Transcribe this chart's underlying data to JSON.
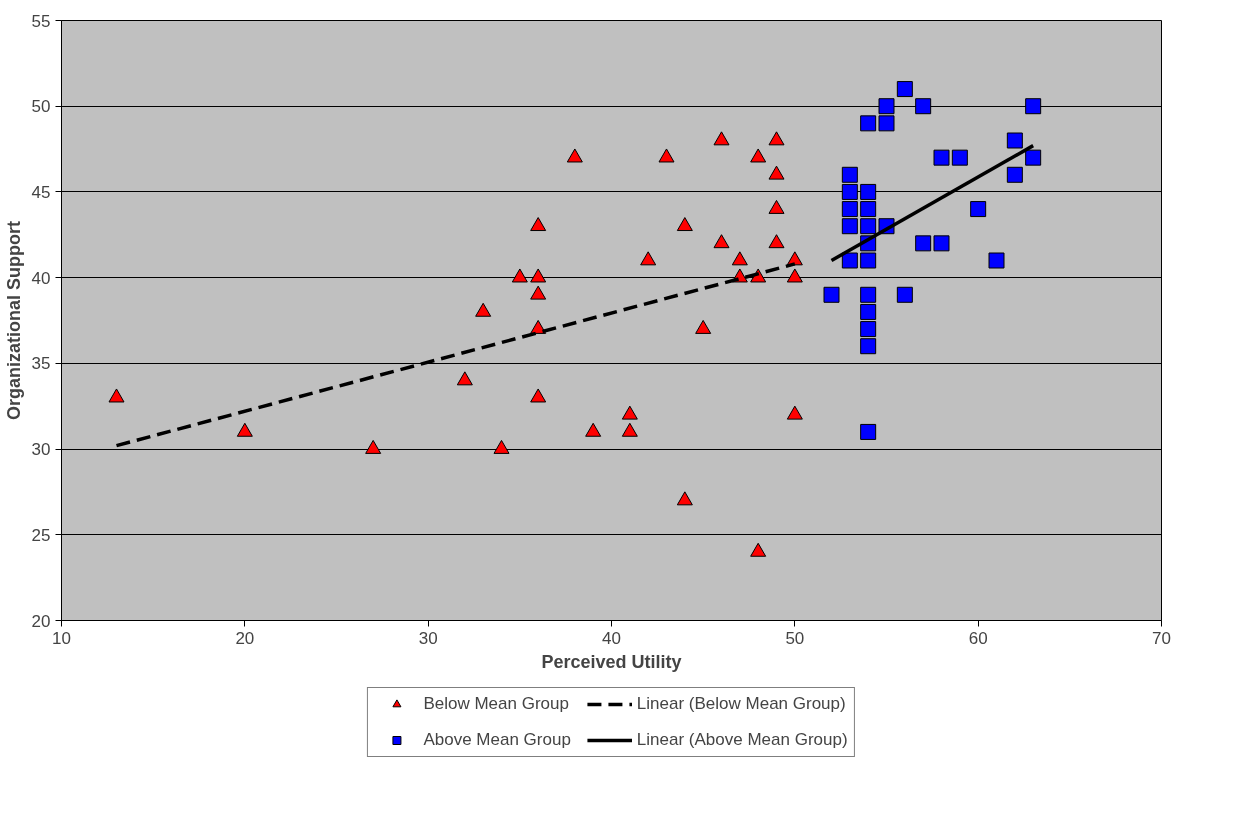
{
  "chart_data": {
    "type": "scatter",
    "xlabel": "Perceived Utility",
    "ylabel": "Organizational Support",
    "xlim": [
      10,
      70
    ],
    "ylim": [
      20,
      55
    ],
    "xticks": [
      10,
      20,
      30,
      40,
      50,
      60,
      70
    ],
    "yticks": [
      20,
      25,
      30,
      35,
      40,
      45,
      50,
      55
    ],
    "grid": "y",
    "legend": "bottom",
    "series": [
      {
        "name": "Below Mean Group",
        "type": "scatter",
        "marker": "triangle",
        "color": "#ff0000",
        "x": [
          13,
          20,
          27,
          32,
          33,
          34,
          35,
          36,
          36,
          36,
          36,
          36,
          38,
          39,
          41,
          41,
          42,
          43,
          44,
          44,
          45,
          46,
          46,
          47,
          47,
          48,
          48,
          48,
          49,
          49,
          49,
          49,
          50,
          50,
          50
        ],
        "values": [
          33,
          31,
          30,
          34,
          38,
          30,
          40,
          40,
          39,
          37,
          43,
          33,
          47,
          31,
          32,
          31,
          41,
          47,
          43,
          27,
          37,
          48,
          42,
          41,
          40,
          47,
          40,
          24,
          48,
          46,
          44,
          42,
          41,
          40,
          32
        ]
      },
      {
        "name": "Above Mean Group",
        "type": "scatter",
        "marker": "square",
        "color": "#0000ff",
        "x": [
          52,
          53,
          53,
          53,
          53,
          53,
          54,
          54,
          54,
          54,
          54,
          54,
          54,
          54,
          54,
          54,
          54,
          55,
          55,
          55,
          56,
          56,
          57,
          57,
          58,
          58,
          59,
          60,
          61,
          62,
          62,
          63,
          63
        ],
        "values": [
          39,
          46,
          45,
          44,
          43,
          41,
          49,
          45,
          44,
          43,
          42,
          41,
          39,
          38,
          37,
          36,
          31,
          50,
          49,
          43,
          51,
          39,
          50,
          42,
          47,
          42,
          47,
          44,
          41,
          48,
          46,
          50,
          47
        ]
      },
      {
        "name": "Linear (Below Mean Group)",
        "type": "line",
        "line_style": "dashed",
        "color": "#000000",
        "x": [
          13,
          50
        ],
        "values": [
          30.2,
          40.8
        ]
      },
      {
        "name": "Linear (Above Mean Group)",
        "type": "line",
        "line_style": "solid",
        "color": "#000000",
        "x": [
          52,
          63
        ],
        "values": [
          41.0,
          47.7
        ]
      }
    ]
  }
}
